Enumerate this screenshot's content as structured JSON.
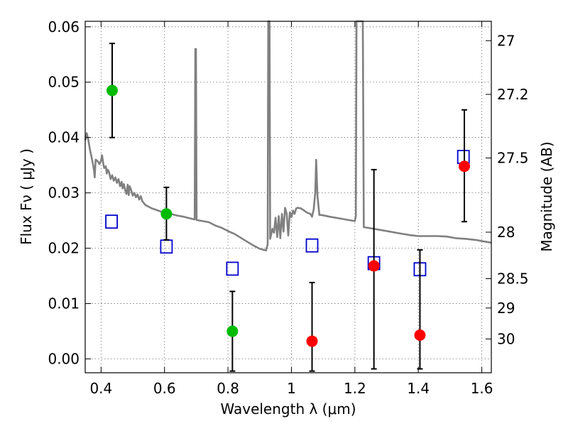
{
  "chart_data": {
    "type": "scatter",
    "xlabel": "Wavelength  λ (μm)",
    "ylabel": "Flux  Fν  ( μJy )",
    "y2label": "Magnitude (AB)",
    "xlim": [
      0.35,
      1.63
    ],
    "ylim": [
      -0.0025,
      0.061
    ],
    "x_ticks": [
      {
        "value": 0.4,
        "label": "0.4"
      },
      {
        "value": 0.6,
        "label": "0.6"
      },
      {
        "value": 0.8,
        "label": "0.8"
      },
      {
        "value": 1.0,
        "label": "1"
      },
      {
        "value": 1.2,
        "label": "1.2"
      },
      {
        "value": 1.4,
        "label": "1.4"
      },
      {
        "value": 1.6,
        "label": "1.6"
      }
    ],
    "y_ticks": [
      {
        "value": 0.0,
        "label": "0.00"
      },
      {
        "value": 0.01,
        "label": "0.01"
      },
      {
        "value": 0.02,
        "label": "0.02"
      },
      {
        "value": 0.03,
        "label": "0.03"
      },
      {
        "value": 0.04,
        "label": "0.04"
      },
      {
        "value": 0.05,
        "label": "0.05"
      },
      {
        "value": 0.06,
        "label": "0.06"
      }
    ],
    "y2_ticks": [
      {
        "flux": 0.0575,
        "label": "27"
      },
      {
        "flux": 0.0478,
        "label": "27.2"
      },
      {
        "flux": 0.0363,
        "label": "27.5"
      },
      {
        "flux": 0.0229,
        "label": "28"
      },
      {
        "flux": 0.0145,
        "label": "28.5"
      },
      {
        "flux": 0.0092,
        "label": "29"
      },
      {
        "flux": 0.0036,
        "label": "30"
      }
    ],
    "grid": true,
    "series": [
      {
        "kind": "model_spectrum",
        "color": "#808080",
        "points": [
          [
            0.35,
            0.0395
          ],
          [
            0.355,
            0.0408
          ],
          [
            0.36,
            0.0395
          ],
          [
            0.365,
            0.0378
          ],
          [
            0.37,
            0.0365
          ],
          [
            0.375,
            0.035
          ],
          [
            0.378,
            0.034
          ],
          [
            0.38,
            0.0328
          ],
          [
            0.383,
            0.036
          ],
          [
            0.388,
            0.0358
          ],
          [
            0.395,
            0.0352
          ],
          [
            0.4,
            0.0358
          ],
          [
            0.403,
            0.0368
          ],
          [
            0.407,
            0.0352
          ],
          [
            0.41,
            0.0345
          ],
          [
            0.415,
            0.0348
          ],
          [
            0.418,
            0.0335
          ],
          [
            0.421,
            0.0342
          ],
          [
            0.425,
            0.0338
          ],
          [
            0.43,
            0.0325
          ],
          [
            0.435,
            0.0332
          ],
          [
            0.44,
            0.0322
          ],
          [
            0.445,
            0.0328
          ],
          [
            0.45,
            0.0318
          ],
          [
            0.455,
            0.0325
          ],
          [
            0.46,
            0.0312
          ],
          [
            0.465,
            0.032
          ],
          [
            0.468,
            0.0308
          ],
          [
            0.472,
            0.0316
          ],
          [
            0.476,
            0.0305
          ],
          [
            0.48,
            0.0298
          ],
          [
            0.484,
            0.0315
          ],
          [
            0.487,
            0.0296
          ],
          [
            0.49,
            0.0312
          ],
          [
            0.495,
            0.0305
          ],
          [
            0.5,
            0.0295
          ],
          [
            0.505,
            0.03
          ],
          [
            0.51,
            0.0292
          ],
          [
            0.515,
            0.0297
          ],
          [
            0.52,
            0.0288
          ],
          [
            0.525,
            0.0294
          ],
          [
            0.53,
            0.0285
          ],
          [
            0.54,
            0.0278
          ],
          [
            0.55,
            0.0275
          ],
          [
            0.56,
            0.0272
          ],
          [
            0.57,
            0.027
          ],
          [
            0.58,
            0.0268
          ],
          [
            0.59,
            0.0266
          ],
          [
            0.6,
            0.0265
          ],
          [
            0.61,
            0.0263
          ],
          [
            0.62,
            0.0262
          ],
          [
            0.64,
            0.0259
          ],
          [
            0.66,
            0.0257
          ],
          [
            0.68,
            0.0254
          ],
          [
            0.695,
            0.0252
          ],
          [
            0.697,
            0.056
          ],
          [
            0.699,
            0.056
          ],
          [
            0.701,
            0.0251
          ],
          [
            0.72,
            0.0249
          ],
          [
            0.74,
            0.0247
          ],
          [
            0.76,
            0.0241
          ],
          [
            0.78,
            0.0237
          ],
          [
            0.8,
            0.0231
          ],
          [
            0.82,
            0.0226
          ],
          [
            0.84,
            0.0219
          ],
          [
            0.86,
            0.0212
          ],
          [
            0.88,
            0.0205
          ],
          [
            0.9,
            0.0199
          ],
          [
            0.92,
            0.0196
          ],
          [
            0.925,
            0.0207
          ],
          [
            0.927,
            0.062
          ],
          [
            0.931,
            0.062
          ],
          [
            0.933,
            0.0217
          ],
          [
            0.94,
            0.0235
          ],
          [
            0.945,
            0.0228
          ],
          [
            0.95,
            0.0255
          ],
          [
            0.955,
            0.022
          ],
          [
            0.96,
            0.0258
          ],
          [
            0.965,
            0.0218
          ],
          [
            0.97,
            0.0262
          ],
          [
            0.975,
            0.023
          ],
          [
            0.98,
            0.0273
          ],
          [
            0.985,
            0.0262
          ],
          [
            0.99,
            0.0223
          ],
          [
            0.995,
            0.0265
          ],
          [
            1.0,
            0.0256
          ],
          [
            1.005,
            0.0268
          ],
          [
            1.01,
            0.0262
          ],
          [
            1.015,
            0.0272
          ],
          [
            1.02,
            0.0273
          ],
          [
            1.03,
            0.0272
          ],
          [
            1.04,
            0.0268
          ],
          [
            1.05,
            0.0264
          ],
          [
            1.06,
            0.0262
          ],
          [
            1.065,
            0.0257
          ],
          [
            1.07,
            0.027
          ],
          [
            1.075,
            0.03
          ],
          [
            1.078,
            0.036
          ],
          [
            1.082,
            0.0295
          ],
          [
            1.088,
            0.026
          ],
          [
            1.095,
            0.026
          ],
          [
            1.12,
            0.0257
          ],
          [
            1.15,
            0.0254
          ],
          [
            1.18,
            0.0251
          ],
          [
            1.2,
            0.0249
          ],
          [
            1.203,
            0.0258
          ],
          [
            1.205,
            0.062
          ],
          [
            1.225,
            0.062
          ],
          [
            1.228,
            0.0238
          ],
          [
            1.25,
            0.0236
          ],
          [
            1.28,
            0.0233
          ],
          [
            1.31,
            0.023
          ],
          [
            1.34,
            0.0227
          ],
          [
            1.37,
            0.0224
          ],
          [
            1.4,
            0.0222
          ],
          [
            1.43,
            0.0222
          ],
          [
            1.46,
            0.0222
          ],
          [
            1.49,
            0.0221
          ],
          [
            1.52,
            0.0218
          ],
          [
            1.55,
            0.0217
          ],
          [
            1.58,
            0.0215
          ],
          [
            1.61,
            0.0212
          ],
          [
            1.63,
            0.021
          ]
        ]
      },
      {
        "kind": "model_photometry",
        "marker": "open-square",
        "color": "#0000cc",
        "points": [
          {
            "x": 0.433,
            "y": 0.0248
          },
          {
            "x": 0.606,
            "y": 0.0203
          },
          {
            "x": 0.814,
            "y": 0.0163
          },
          {
            "x": 1.065,
            "y": 0.0205
          },
          {
            "x": 1.26,
            "y": 0.0173
          },
          {
            "x": 1.405,
            "y": 0.0162
          },
          {
            "x": 1.542,
            "y": 0.0365
          }
        ]
      },
      {
        "kind": "observed_photometry",
        "marker": "filled-circle",
        "points": [
          {
            "x": 0.435,
            "y": 0.0485,
            "lo": 0.04,
            "hi": 0.057,
            "color": "#00bb00"
          },
          {
            "x": 0.606,
            "y": 0.0262,
            "lo": 0.0215,
            "hi": 0.031,
            "color": "#00bb00"
          },
          {
            "x": 0.814,
            "y": 0.005,
            "lo": -0.0022,
            "hi": 0.0122,
            "color": "#00bb00"
          },
          {
            "x": 1.065,
            "y": 0.0032,
            "lo": -0.0022,
            "hi": 0.0138,
            "color": "#ff0000"
          },
          {
            "x": 1.26,
            "y": 0.0168,
            "lo": -0.0018,
            "hi": 0.0342,
            "color": "#ff0000"
          },
          {
            "x": 1.405,
            "y": 0.0043,
            "lo": -0.0018,
            "hi": 0.0197,
            "color": "#ff0000"
          },
          {
            "x": 1.545,
            "y": 0.0348,
            "lo": 0.0248,
            "hi": 0.045,
            "color": "#ff0000"
          }
        ]
      }
    ]
  }
}
